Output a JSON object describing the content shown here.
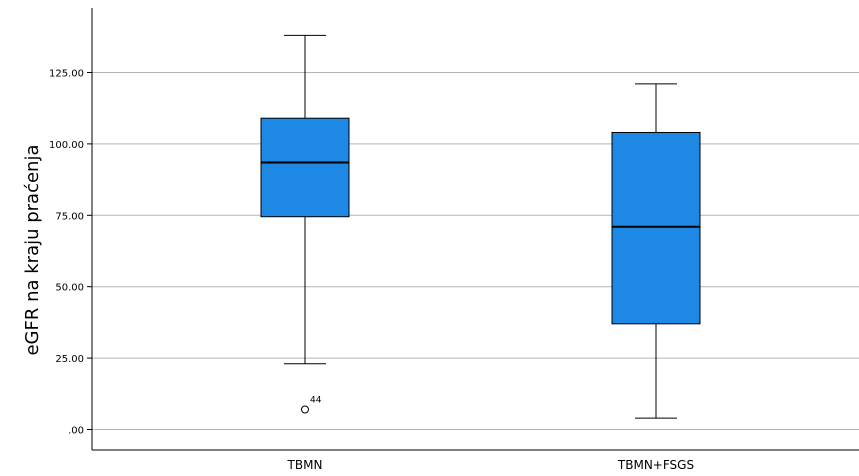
{
  "chart_data": {
    "type": "boxplot",
    "ylabel": "eGFR na kraju praćenja",
    "xlabel": "",
    "ylim": [
      -2,
      150
    ],
    "yticks": [
      0,
      25,
      50,
      75,
      100,
      125
    ],
    "ytick_labels": [
      ".00",
      "25.00",
      "50.00",
      "75.00",
      "100.00",
      "125.00"
    ],
    "grid": "horizontal",
    "box_color": "#1e88e5",
    "categories": [
      "TBMN",
      "TBMN+FSGS"
    ],
    "boxes": [
      {
        "category": "TBMN",
        "whisker_low": 23,
        "q1": 74.5,
        "median": 93.5,
        "q3": 109,
        "whisker_high": 138,
        "outliers": [
          {
            "value": 7,
            "label": "44"
          }
        ]
      },
      {
        "category": "TBMN+FSGS",
        "whisker_low": 4,
        "q1": 37,
        "median": 71,
        "q3": 104,
        "whisker_high": 121,
        "outliers": []
      }
    ]
  }
}
